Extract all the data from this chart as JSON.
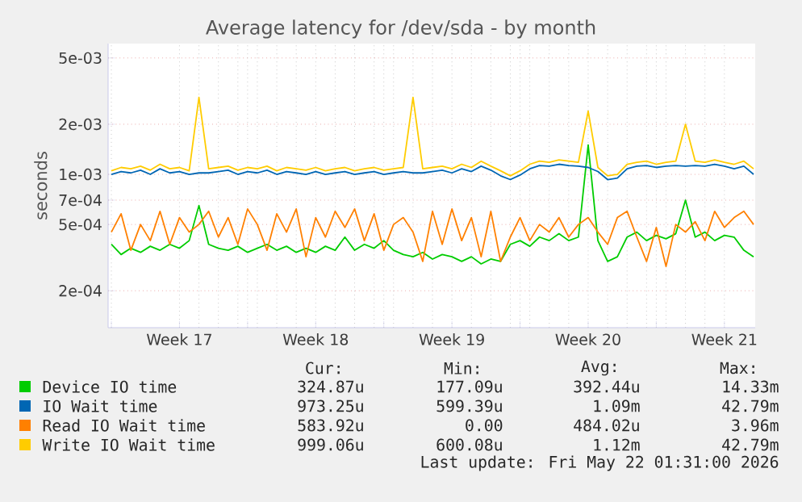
{
  "chart_data": {
    "type": "line",
    "title": "Average latency for /dev/sda - by month",
    "ylabel": "seconds",
    "x": [
      "2026-04-19T00:00",
      "2026-04-19T12:00",
      "2026-04-20T00:00",
      "2026-04-20T12:00",
      "2026-04-21T00:00",
      "2026-04-21T12:00",
      "2026-04-22T00:00",
      "2026-04-22T12:00",
      "2026-04-23T00:00",
      "2026-04-23T12:00",
      "2026-04-24T00:00",
      "2026-04-24T12:00",
      "2026-04-25T00:00",
      "2026-04-25T12:00",
      "2026-04-26T00:00",
      "2026-04-26T12:00",
      "2026-04-27T00:00",
      "2026-04-27T12:00",
      "2026-04-28T00:00",
      "2026-04-28T12:00",
      "2026-04-29T00:00",
      "2026-04-29T12:00",
      "2026-04-30T00:00",
      "2026-04-30T12:00",
      "2026-05-01T00:00",
      "2026-05-01T12:00",
      "2026-05-02T00:00",
      "2026-05-02T12:00",
      "2026-05-03T00:00",
      "2026-05-03T12:00",
      "2026-05-04T00:00",
      "2026-05-04T12:00",
      "2026-05-05T00:00",
      "2026-05-05T12:00",
      "2026-05-06T00:00",
      "2026-05-06T12:00",
      "2026-05-07T00:00",
      "2026-05-07T12:00",
      "2026-05-08T00:00",
      "2026-05-08T12:00",
      "2026-05-09T00:00",
      "2026-05-09T12:00",
      "2026-05-10T00:00",
      "2026-05-10T12:00",
      "2026-05-11T00:00",
      "2026-05-11T12:00",
      "2026-05-12T00:00",
      "2026-05-12T12:00",
      "2026-05-13T00:00",
      "2026-05-13T12:00",
      "2026-05-14T00:00",
      "2026-05-14T12:00",
      "2026-05-15T00:00",
      "2026-05-15T12:00",
      "2026-05-16T00:00",
      "2026-05-16T12:00",
      "2026-05-17T00:00",
      "2026-05-17T12:00",
      "2026-05-18T00:00",
      "2026-05-18T12:00",
      "2026-05-19T00:00",
      "2026-05-19T12:00",
      "2026-05-20T00:00",
      "2026-05-20T12:00",
      "2026-05-21T00:00",
      "2026-05-21T12:00",
      "2026-05-22T00:00"
    ],
    "series": [
      {
        "name": "Device IO time",
        "color": "#00cc00",
        "values": [
          0.00038,
          0.00033,
          0.00036,
          0.00034,
          0.00037,
          0.00035,
          0.00038,
          0.00036,
          0.0004,
          0.00065,
          0.00038,
          0.00036,
          0.00035,
          0.00037,
          0.00034,
          0.00036,
          0.00038,
          0.00035,
          0.00037,
          0.00034,
          0.00036,
          0.00034,
          0.00037,
          0.00035,
          0.00042,
          0.00035,
          0.00038,
          0.00036,
          0.0004,
          0.00035,
          0.00033,
          0.00032,
          0.00034,
          0.00031,
          0.00033,
          0.00032,
          0.0003,
          0.00032,
          0.00029,
          0.00031,
          0.0003,
          0.00038,
          0.0004,
          0.00037,
          0.00042,
          0.0004,
          0.00044,
          0.0004,
          0.00042,
          0.0015,
          0.0004,
          0.0003,
          0.00032,
          0.00042,
          0.00045,
          0.0004,
          0.00043,
          0.00041,
          0.00044,
          0.0007,
          0.00042,
          0.00045,
          0.0004,
          0.00043,
          0.00042,
          0.00035,
          0.00032
        ]
      },
      {
        "name": "IO Wait time",
        "color": "#0066b3",
        "values": [
          0.001,
          0.00104,
          0.00102,
          0.00106,
          0.001,
          0.00108,
          0.00102,
          0.00104,
          0.001,
          0.00102,
          0.00102,
          0.00104,
          0.00106,
          0.001,
          0.00104,
          0.00102,
          0.00106,
          0.001,
          0.00104,
          0.00102,
          0.001,
          0.00104,
          0.001,
          0.00102,
          0.00104,
          0.001,
          0.00102,
          0.00104,
          0.001,
          0.00102,
          0.00104,
          0.00102,
          0.00102,
          0.00104,
          0.00106,
          0.00102,
          0.00108,
          0.00104,
          0.00112,
          0.00106,
          0.00098,
          0.00093,
          0.00099,
          0.00108,
          0.00113,
          0.00112,
          0.00115,
          0.00113,
          0.00112,
          0.0011,
          0.00104,
          0.00093,
          0.00095,
          0.00108,
          0.00112,
          0.00113,
          0.0011,
          0.00112,
          0.00113,
          0.00112,
          0.00113,
          0.00112,
          0.00115,
          0.00112,
          0.00108,
          0.00112,
          0.001
        ]
      },
      {
        "name": "Read IO Wait time",
        "color": "#ff8000",
        "values": [
          0.00045,
          0.00058,
          0.00035,
          0.0005,
          0.0004,
          0.0006,
          0.00038,
          0.00055,
          0.00045,
          0.0005,
          0.0006,
          0.00042,
          0.00055,
          0.00038,
          0.00062,
          0.0005,
          0.00035,
          0.00058,
          0.00045,
          0.00062,
          0.00032,
          0.00055,
          0.00042,
          0.0006,
          0.00048,
          0.00062,
          0.0004,
          0.00058,
          0.00035,
          0.0005,
          0.00055,
          0.00045,
          0.0003,
          0.0006,
          0.00038,
          0.00062,
          0.0004,
          0.00055,
          0.00032,
          0.0006,
          0.0003,
          0.00042,
          0.00055,
          0.0004,
          0.0005,
          0.00045,
          0.00055,
          0.00042,
          0.0005,
          0.00055,
          0.00045,
          0.00038,
          0.00055,
          0.0006,
          0.00042,
          0.0003,
          0.00048,
          0.00028,
          0.0005,
          0.00045,
          0.00052,
          0.0004,
          0.0006,
          0.00048,
          0.00055,
          0.0006,
          0.0005
        ]
      },
      {
        "name": "Write IO Wait time",
        "color": "#ffcc00",
        "values": [
          0.00105,
          0.0011,
          0.00108,
          0.00112,
          0.00106,
          0.00115,
          0.00108,
          0.0011,
          0.00105,
          0.0029,
          0.00108,
          0.0011,
          0.00112,
          0.00106,
          0.0011,
          0.00108,
          0.00112,
          0.00105,
          0.0011,
          0.00108,
          0.00106,
          0.0011,
          0.00105,
          0.00108,
          0.0011,
          0.00105,
          0.00108,
          0.0011,
          0.00106,
          0.00108,
          0.0011,
          0.0029,
          0.00108,
          0.0011,
          0.00112,
          0.00108,
          0.00115,
          0.0011,
          0.0012,
          0.00112,
          0.00105,
          0.00098,
          0.00105,
          0.00115,
          0.0012,
          0.00118,
          0.00122,
          0.0012,
          0.00118,
          0.0024,
          0.0011,
          0.00098,
          0.001,
          0.00115,
          0.00118,
          0.0012,
          0.00115,
          0.00118,
          0.0012,
          0.002,
          0.0012,
          0.00118,
          0.00122,
          0.00118,
          0.00115,
          0.0012,
          0.00108
        ]
      }
    ],
    "log": "y",
    "xlim": [
      "2026-04-18T20:00",
      "2026-05-22T02:00"
    ],
    "ylim": [
      0.00012,
      0.0061
    ],
    "xticks": [
      {
        "value": "2026-04-19",
        "label": null
      },
      {
        "value": "2026-04-26",
        "label": null
      },
      {
        "value": "2026-05-03",
        "label": null
      },
      {
        "value": "2026-05-10",
        "label": null
      },
      {
        "value": "2026-05-17",
        "label": null
      },
      {
        "value": "2026-04-22T12:00",
        "label": "Week 17"
      },
      {
        "value": "2026-04-29T12:00",
        "label": "Week 18"
      },
      {
        "value": "2026-05-06T12:00",
        "label": "Week 19"
      },
      {
        "value": "2026-05-13T12:00",
        "label": "Week 20"
      },
      {
        "value": "2026-05-20T12:00",
        "label": "Week 21"
      }
    ],
    "yticks": [
      {
        "value": 0.0002,
        "label": "2e-04"
      },
      {
        "value": 0.0005,
        "label": "5e-04"
      },
      {
        "value": 0.0007,
        "label": "7e-04"
      },
      {
        "value": 0.001,
        "label": "1e-03"
      },
      {
        "value": 0.002,
        "label": "2e-03"
      },
      {
        "value": 0.005,
        "label": "5e-03"
      }
    ],
    "grid": true,
    "legend": "bottom",
    "marker": "none",
    "line_style": "solid",
    "annotations": [
      "Cur:",
      "Min:",
      "Avg:",
      "Max:",
      "324.87u",
      "177.09u",
      "392.44u",
      "14.33m",
      "973.25u",
      "599.39u",
      "1.09m",
      "42.79m",
      "583.92u",
      "0.00",
      "484.02u",
      "3.96m",
      "999.06u",
      "600.08u",
      "1.12m",
      "42.79m",
      "Last update: Fri May 22 01:31:00 2026"
    ]
  }
}
